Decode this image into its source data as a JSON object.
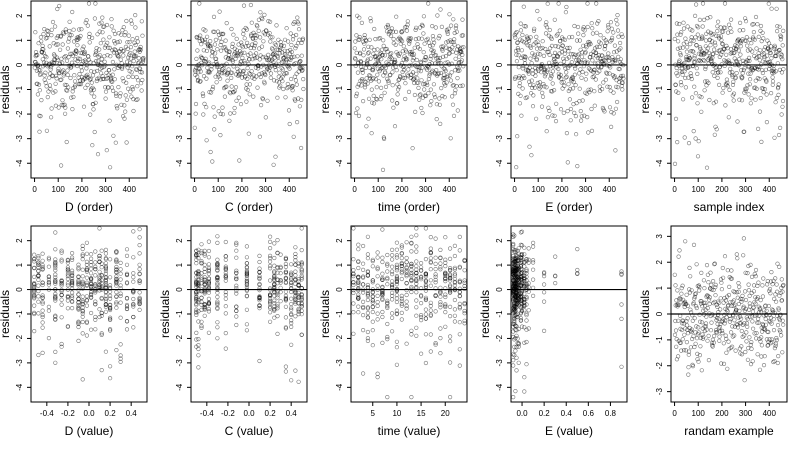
{
  "style": {
    "point_color": "#000000",
    "background": "#ffffff"
  },
  "chart_data": [
    {
      "type": "scatter",
      "ylabel": "residuals",
      "xlabel": "D (order)",
      "xlim": [
        -15,
        475
      ],
      "ylim": [
        -4.6,
        2.6
      ],
      "xticks": [
        0,
        100,
        200,
        300,
        400
      ],
      "xtick_labels": [
        "0",
        "100",
        "200",
        "300",
        "400"
      ],
      "yticks": [
        -4,
        -3,
        -2,
        -1,
        0,
        1,
        2
      ],
      "ytick_labels": [
        "-4",
        "-3",
        "-2",
        "-1",
        "0",
        "1",
        "2"
      ],
      "hline": 0,
      "x_mode": "uniform",
      "x_range": [
        1,
        460
      ],
      "n": 460
    },
    {
      "type": "scatter",
      "ylabel": "residuals",
      "xlabel": "C (order)",
      "xlim": [
        -15,
        475
      ],
      "ylim": [
        -4.6,
        2.6
      ],
      "xticks": [
        0,
        100,
        200,
        300,
        400
      ],
      "xtick_labels": [
        "0",
        "100",
        "200",
        "300",
        "400"
      ],
      "yticks": [
        -4,
        -3,
        -2,
        -1,
        0,
        1,
        2
      ],
      "ytick_labels": [
        "-4",
        "-3",
        "-2",
        "-1",
        "0",
        "1",
        "2"
      ],
      "hline": 0,
      "x_mode": "uniform",
      "x_range": [
        1,
        460
      ],
      "n": 460
    },
    {
      "type": "scatter",
      "ylabel": "residuals",
      "xlabel": "time (order)",
      "xlim": [
        -15,
        475
      ],
      "ylim": [
        -4.6,
        2.6
      ],
      "xticks": [
        0,
        100,
        200,
        300,
        400
      ],
      "xtick_labels": [
        "0",
        "100",
        "200",
        "300",
        "400"
      ],
      "yticks": [
        -4,
        -3,
        -2,
        -1,
        0,
        1,
        2
      ],
      "ytick_labels": [
        "-4",
        "-3",
        "-2",
        "-1",
        "0",
        "1",
        "2"
      ],
      "hline": 0,
      "x_mode": "uniform",
      "x_range": [
        1,
        460
      ],
      "n": 460
    },
    {
      "type": "scatter",
      "ylabel": "residuals",
      "xlabel": "E (order)",
      "xlim": [
        -15,
        475
      ],
      "ylim": [
        -4.6,
        2.6
      ],
      "xticks": [
        0,
        100,
        200,
        300,
        400
      ],
      "xtick_labels": [
        "0",
        "100",
        "200",
        "300",
        "400"
      ],
      "yticks": [
        -4,
        -3,
        -2,
        -1,
        0,
        1,
        2
      ],
      "ytick_labels": [
        "-4",
        "-3",
        "-2",
        "-1",
        "0",
        "1",
        "2"
      ],
      "hline": 0,
      "x_mode": "uniform",
      "x_range": [
        1,
        460
      ],
      "n": 460
    },
    {
      "type": "scatter",
      "ylabel": "residuals",
      "xlabel": "sample index",
      "xlim": [
        -15,
        475
      ],
      "ylim": [
        -4.6,
        2.6
      ],
      "xticks": [
        0,
        100,
        200,
        300,
        400
      ],
      "xtick_labels": [
        "0",
        "100",
        "200",
        "300",
        "400"
      ],
      "yticks": [
        -4,
        -3,
        -2,
        -1,
        0,
        1,
        2
      ],
      "ytick_labels": [
        "-4",
        "-3",
        "-2",
        "-1",
        "0",
        "1",
        "2"
      ],
      "hline": 0,
      "x_mode": "uniform",
      "x_range": [
        1,
        460
      ],
      "n": 460
    },
    {
      "type": "scatter",
      "ylabel": "residuals",
      "xlabel": "D (value)",
      "xlim": [
        -0.55,
        0.55
      ],
      "ylim": [
        -4.6,
        2.6
      ],
      "xticks": [
        -0.4,
        -0.2,
        0,
        0.2,
        0.4
      ],
      "xtick_labels": [
        "-0.4",
        "-0.2",
        "0.0",
        "0.2",
        "0.4"
      ],
      "yticks": [
        -4,
        -3,
        -2,
        -1,
        0,
        1,
        2
      ],
      "ytick_labels": [
        "-4",
        "-3",
        "-2",
        "-1",
        "0",
        "1",
        "2"
      ],
      "hline": 0,
      "x_mode": "levels",
      "x_levels": [
        -0.52,
        -0.48,
        -0.44,
        -0.38,
        -0.32,
        -0.26,
        -0.2,
        -0.16,
        -0.1,
        -0.06,
        -0.02,
        0.02,
        0.06,
        0.1,
        0.12,
        0.16,
        0.2,
        0.26,
        0.3,
        0.36,
        0.42,
        0.48
      ],
      "n": 460
    },
    {
      "type": "scatter",
      "ylabel": "residuals",
      "xlabel": "C (value)",
      "xlim": [
        -0.55,
        0.55
      ],
      "ylim": [
        -4.6,
        2.6
      ],
      "xticks": [
        -0.4,
        -0.2,
        0,
        0.2,
        0.4
      ],
      "xtick_labels": [
        "-0.4",
        "-0.2",
        "0.0",
        "0.2",
        "0.4"
      ],
      "yticks": [
        -4,
        -3,
        -2,
        -1,
        0,
        1,
        2
      ],
      "ytick_labels": [
        "-4",
        "-3",
        "-2",
        "-1",
        "0",
        "1",
        "2"
      ],
      "hline": 0,
      "x_mode": "levels",
      "x_levels": [
        -0.5,
        -0.48,
        -0.45,
        -0.42,
        -0.38,
        -0.3,
        -0.22,
        -0.12,
        -0.02,
        0.1,
        0.2,
        0.24,
        0.27,
        0.3,
        0.35,
        0.4,
        0.44,
        0.47,
        0.5
      ],
      "n": 460
    },
    {
      "type": "scatter",
      "ylabel": "residuals",
      "xlabel": "time (value)",
      "xlim": [
        0.5,
        24.5
      ],
      "ylim": [
        -4.6,
        2.6
      ],
      "xticks": [
        5,
        10,
        15,
        20
      ],
      "xtick_labels": [
        "5",
        "10",
        "15",
        "20"
      ],
      "yticks": [
        -4,
        -3,
        -2,
        -1,
        0,
        1,
        2
      ],
      "ytick_labels": [
        "-4",
        "-3",
        "-2",
        "-1",
        "0",
        "1",
        "2"
      ],
      "hline": 0,
      "x_mode": "levels",
      "x_levels": [
        1,
        2,
        3,
        4,
        5,
        6,
        7,
        8,
        9,
        10,
        11,
        12,
        13,
        14,
        15,
        16,
        17,
        18,
        19,
        20,
        21,
        22,
        23,
        24
      ],
      "n": 460
    },
    {
      "type": "scatter",
      "ylabel": "residuals",
      "xlabel": "E (value)",
      "xlim": [
        -0.1,
        0.95
      ],
      "ylim": [
        -4.6,
        2.6
      ],
      "xticks": [
        0.0,
        0.2,
        0.4,
        0.6,
        0.8
      ],
      "xtick_labels": [
        "0.0",
        "0.2",
        "0.4",
        "0.6",
        "0.8"
      ],
      "yticks": [
        -4,
        -3,
        -2,
        -1,
        0,
        1,
        2
      ],
      "ytick_labels": [
        "-4",
        "-3",
        "-2",
        "-1",
        "0",
        "1",
        "2"
      ],
      "hline": 0,
      "x_mode": "skewed",
      "x_levels": [
        -0.08,
        -0.07,
        -0.06,
        -0.05,
        -0.04,
        -0.03,
        -0.01,
        0.0,
        0.02,
        0.04,
        0.06,
        0.1,
        0.2,
        0.3,
        0.5,
        0.9
      ],
      "x_weights": [
        40,
        50,
        45,
        40,
        35,
        30,
        25,
        25,
        20,
        15,
        10,
        8,
        6,
        5,
        3,
        4
      ],
      "n": 460
    },
    {
      "type": "scatter",
      "ylabel": "residuals",
      "xlabel": "randam example",
      "xlim": [
        -15,
        475
      ],
      "ylim": [
        -3.4,
        3.4
      ],
      "xticks": [
        0,
        100,
        200,
        300,
        400
      ],
      "xtick_labels": [
        "0",
        "100",
        "200",
        "300",
        "400"
      ],
      "yticks": [
        -3,
        -2,
        -1,
        0,
        1,
        2,
        3
      ],
      "ytick_labels": [
        "-3",
        "-2",
        "-1",
        "0",
        "1",
        "2",
        "3"
      ],
      "hline": 0,
      "x_mode": "uniform",
      "x_range": [
        1,
        460
      ],
      "n": 460,
      "y_dist": "normal"
    }
  ]
}
